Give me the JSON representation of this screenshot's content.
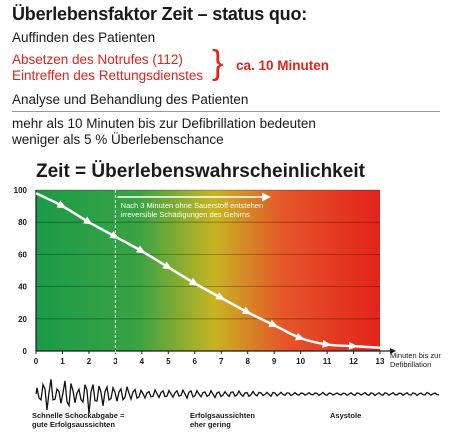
{
  "header": {
    "title": "Überlebensfaktor Zeit – status quo:",
    "line1": "Auffinden des Patienten",
    "line2": "Absetzen des Notrufes (112)",
    "line3": "Eintreffen des Rettungsdienstes",
    "brace_label": "ca. 10 Minuten",
    "line4": "Analyse und Behandlung des Patienten",
    "line5": "mehr als 10 Minuten bis zur Defibrillation bedeuten",
    "line6": "weniger als 5 % Überlebenschance"
  },
  "colors": {
    "red": "#e2231a",
    "green": "#1a9a47",
    "yellow": "#c8b422"
  },
  "chart_data": {
    "type": "line",
    "title": "Zeit = Überlebenswahrscheinlichkeit",
    "xlabel_line1": "Minuten bis zur",
    "xlabel_line2": "Defibrillation",
    "ylabel": "",
    "xlim": [
      0,
      13
    ],
    "ylim": [
      0,
      100
    ],
    "x_ticks": [
      "0",
      "1",
      "2",
      "3",
      "4",
      "5",
      "6",
      "7",
      "8",
      "9",
      "10",
      "11",
      "12",
      "13"
    ],
    "y_ticks": [
      "0",
      "20",
      "40",
      "60",
      "80",
      "100"
    ],
    "x": [
      0,
      1,
      2,
      3,
      4,
      5,
      6,
      7,
      8,
      9,
      10,
      11,
      12,
      13
    ],
    "series": [
      {
        "values": [
          98,
          90,
          80,
          71,
          62,
          52,
          42,
          33,
          24,
          16,
          8,
          4,
          3,
          2
        ]
      }
    ],
    "marker_line_x": 3,
    "annotation_line1": "Nach 3 Minuten ohne Sauerstoff entstehen",
    "annotation_line2": "irreversible Schädigungen des Gehirns",
    "ecg_labels": [
      {
        "line1": "Schnelle Schockabgabe =",
        "line2": "gute Erfolgsaussichten"
      },
      {
        "line1": "Erfolgsaussichten",
        "line2": "eher gering"
      },
      {
        "line1": "Asystole",
        "line2": ""
      }
    ]
  }
}
